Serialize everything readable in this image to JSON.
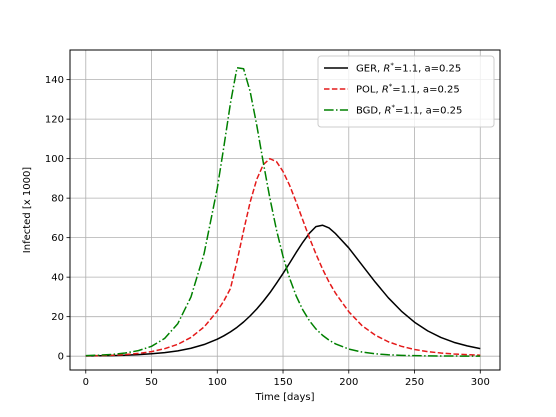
{
  "chart_data": {
    "type": "line",
    "title": "",
    "xlabel": "Time [days]",
    "ylabel": "Infected [x 1000]",
    "xlim": [
      -12,
      315
    ],
    "ylim": [
      -7,
      155
    ],
    "xticks": [
      0,
      50,
      100,
      150,
      200,
      250,
      300
    ],
    "yticks": [
      0,
      20,
      40,
      60,
      80,
      100,
      120,
      140
    ],
    "grid": true,
    "legend_position": "top-right",
    "x": [
      0,
      10,
      20,
      30,
      40,
      50,
      60,
      70,
      80,
      90,
      100,
      105,
      110,
      115,
      120,
      125,
      130,
      135,
      140,
      145,
      150,
      155,
      160,
      165,
      170,
      175,
      180,
      185,
      190,
      200,
      210,
      220,
      230,
      240,
      250,
      260,
      270,
      280,
      290,
      300
    ],
    "series": [
      {
        "label_prefix": "GER, ",
        "label_suffix": "=1.1, a=0.25",
        "color": "#000000",
        "style": "solid",
        "values": [
          0.1,
          0.2,
          0.3,
          0.5,
          0.8,
          1.2,
          1.8,
          2.7,
          4.0,
          5.9,
          8.6,
          10.3,
          12.3,
          14.6,
          17.3,
          20.4,
          23.9,
          27.8,
          32.1,
          36.9,
          41.9,
          47.1,
          52.5,
          57.6,
          62.2,
          65.6,
          66.3,
          64.9,
          62.0,
          54.8,
          46.2,
          37.6,
          29.6,
          22.8,
          17.2,
          12.8,
          9.5,
          7.0,
          5.2,
          3.8
        ]
      },
      {
        "label_prefix": "POL, ",
        "label_suffix": "=1.1, a=0.25",
        "color": "#e41a1a",
        "style": "dashed",
        "values": [
          0.2,
          0.3,
          0.5,
          0.8,
          1.4,
          2.3,
          3.8,
          6.0,
          9.5,
          14.8,
          22.8,
          28.0,
          34.2,
          48.0,
          63.5,
          78.0,
          89.5,
          97.0,
          100.0,
          98.5,
          93.5,
          86.5,
          78.0,
          69.0,
          60.0,
          51.8,
          44.2,
          37.5,
          31.8,
          22.5,
          15.5,
          10.7,
          7.3,
          5.0,
          3.4,
          2.3,
          1.6,
          1.1,
          0.8,
          0.5
        ]
      },
      {
        "label_prefix": "BGD, ",
        "label_suffix": "=1.1, a=0.25",
        "color": "#008000",
        "style": "dashdot",
        "values": [
          0.3,
          0.5,
          0.9,
          1.6,
          2.8,
          5.0,
          9.0,
          16.5,
          30.0,
          52.0,
          85.0,
          106.0,
          128.0,
          146.0,
          145.5,
          134.0,
          117.0,
          98.0,
          80.0,
          64.0,
          50.5,
          39.5,
          30.5,
          23.5,
          18.0,
          13.8,
          10.6,
          8.1,
          6.2,
          3.6,
          2.1,
          1.2,
          0.7,
          0.4,
          0.25,
          0.15,
          0.1,
          0.06,
          0.04,
          0.02
        ]
      }
    ]
  }
}
